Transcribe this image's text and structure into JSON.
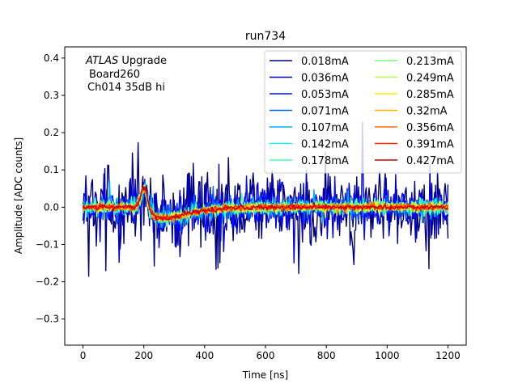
{
  "chart_data": {
    "type": "line",
    "title": "run734",
    "xlabel": "Time [ns]",
    "ylabel": "Amplitude [ADC counts]",
    "xlim": [
      -60,
      1260
    ],
    "ylim": [
      -0.37,
      0.43
    ],
    "xticks": [
      0,
      200,
      400,
      600,
      800,
      1000,
      1200
    ],
    "yticks": [
      -0.3,
      -0.2,
      -0.1,
      0.0,
      0.1,
      0.2,
      0.3,
      0.4
    ],
    "xtick_labels": [
      "0",
      "200",
      "400",
      "600",
      "800",
      "1000",
      "1200"
    ],
    "ytick_labels": [
      "−0.3",
      "−0.2",
      "−0.1",
      "0.0",
      "0.1",
      "0.2",
      "0.3",
      "0.4"
    ],
    "grid": false,
    "legend_position": "top-right",
    "legend_columns": 2,
    "annotation": {
      "atlas": "ATLAS",
      "upgrade": " Upgrade",
      "line2": "Board260",
      "line3": "Ch014 35dB hi"
    },
    "x_range": [
      0,
      1200
    ],
    "sample_step_ns": 3.125,
    "pulse_center_ns": 200,
    "series": [
      {
        "name": "0.018mA",
        "color": "#00007f",
        "noise_amplitude": 0.1,
        "pulse_peak": 0.04,
        "pulse_undershoot": -0.03
      },
      {
        "name": "0.036mA",
        "color": "#0000cc",
        "noise_amplitude": 0.06,
        "pulse_peak": 0.04,
        "pulse_undershoot": -0.03
      },
      {
        "name": "0.053mA",
        "color": "#0010ff",
        "noise_amplitude": 0.035,
        "pulse_peak": 0.042,
        "pulse_undershoot": -0.03
      },
      {
        "name": "0.071mA",
        "color": "#0060ff",
        "noise_amplitude": 0.025,
        "pulse_peak": 0.044,
        "pulse_undershoot": -0.03
      },
      {
        "name": "0.107mA",
        "color": "#00b0ff",
        "noise_amplitude": 0.02,
        "pulse_peak": 0.045,
        "pulse_undershoot": -0.03
      },
      {
        "name": "0.142mA",
        "color": "#16ffe1",
        "noise_amplitude": 0.016,
        "pulse_peak": 0.046,
        "pulse_undershoot": -0.03
      },
      {
        "name": "0.178mA",
        "color": "#4dffaa",
        "noise_amplitude": 0.014,
        "pulse_peak": 0.047,
        "pulse_undershoot": -0.03
      },
      {
        "name": "0.213mA",
        "color": "#7dff7a",
        "noise_amplitude": 0.012,
        "pulse_peak": 0.048,
        "pulse_undershoot": -0.03
      },
      {
        "name": "0.249mA",
        "color": "#b4ff43",
        "noise_amplitude": 0.011,
        "pulse_peak": 0.049,
        "pulse_undershoot": -0.03
      },
      {
        "name": "0.285mA",
        "color": "#ffee00",
        "noise_amplitude": 0.01,
        "pulse_peak": 0.05,
        "pulse_undershoot": -0.03
      },
      {
        "name": "0.32mA",
        "color": "#ffb200",
        "noise_amplitude": 0.009,
        "pulse_peak": 0.05,
        "pulse_undershoot": -0.03
      },
      {
        "name": "0.356mA",
        "color": "#ff6a00",
        "noise_amplitude": 0.008,
        "pulse_peak": 0.051,
        "pulse_undershoot": -0.03
      },
      {
        "name": "0.391mA",
        "color": "#ff2500",
        "noise_amplitude": 0.007,
        "pulse_peak": 0.052,
        "pulse_undershoot": -0.03
      },
      {
        "name": "0.427mA",
        "color": "#cc0000",
        "noise_amplitude": 0.006,
        "pulse_peak": 0.053,
        "pulse_undershoot": -0.03
      }
    ]
  }
}
